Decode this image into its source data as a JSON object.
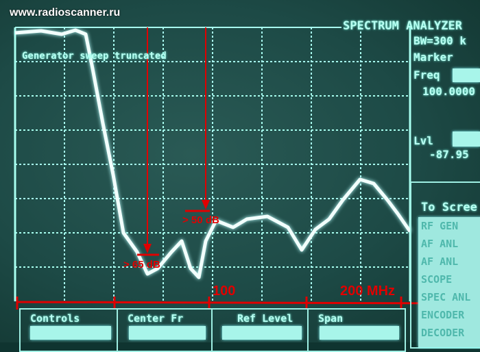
{
  "watermark": "www.radioscanner.ru",
  "analyzer": {
    "title": "SPECTRUM ANALYZER",
    "bandwidth": "BW=300 k",
    "marker_label": "Marker",
    "freq_label": "Freq",
    "freq_value": "100.0000",
    "level_label": "Lvl",
    "level_value": "-87.95",
    "message": "Generator sweep truncated"
  },
  "to_screen": {
    "title": "To Scree",
    "items": [
      "RF GEN",
      "AF ANL",
      "AF ANL",
      "SCOPE",
      "SPEC ANL",
      "ENCODER",
      "DECODER"
    ]
  },
  "bottom": {
    "controls": "Controls",
    "center_freq": "Center Fr",
    "ref_level": "Ref Level",
    "span": "Span"
  },
  "annotations": {
    "att1": "> 65 dB",
    "att2": "> 50 dB",
    "axis_mid": "100",
    "axis_end": "200  MHz"
  },
  "colors": {
    "trace": "#f2fffc",
    "annotation": "#e00000",
    "screen": "#1d4a46"
  }
}
